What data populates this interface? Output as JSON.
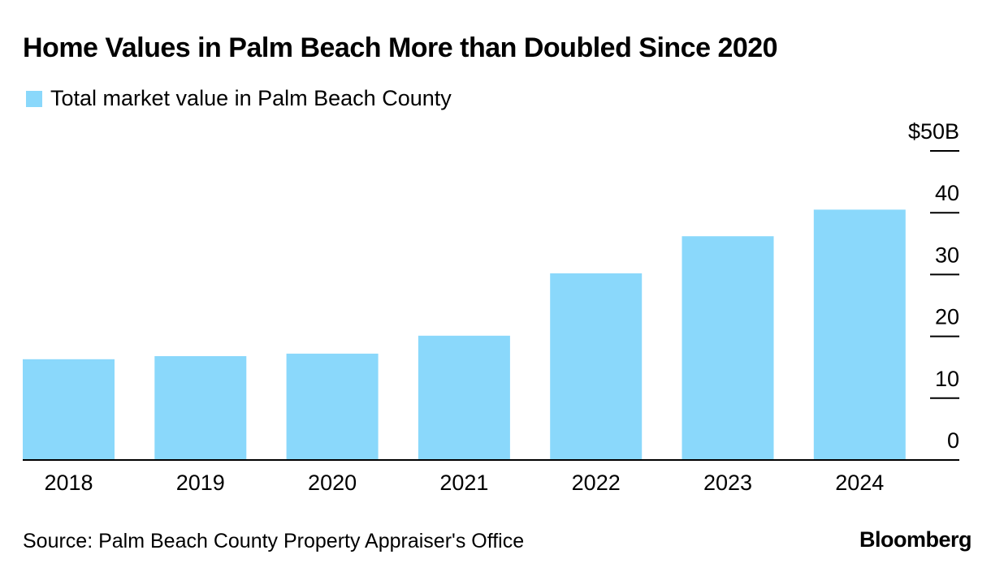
{
  "header": {
    "title": "Home Values in Palm Beach More than Doubled Since 2020"
  },
  "legend": {
    "label": "Total market value in Palm Beach County",
    "color": "#8AD8FB"
  },
  "footer": {
    "source": "Source: Palm Beach County Property Appraiser's Office",
    "logo_text": "Bloomberg"
  },
  "chart_data": {
    "type": "bar",
    "title": "Home Values in Palm Beach More than Doubled Since 2020",
    "xlabel": "",
    "ylabel": "",
    "categories": [
      "2018",
      "2019",
      "2020",
      "2021",
      "2022",
      "2023",
      "2024"
    ],
    "series": [
      {
        "name": "Total market value in Palm Beach County",
        "values": [
          16.3,
          16.8,
          17.2,
          20.1,
          30.2,
          36.2,
          40.5
        ],
        "color": "#8AD8FB"
      }
    ],
    "ylim": [
      0,
      50
    ],
    "yticks": [
      0,
      10,
      20,
      30,
      40,
      50
    ],
    "ytick_labels": [
      "0",
      "10",
      "20",
      "30",
      "40",
      "$50B"
    ],
    "y_axis_position": "right",
    "grid": false,
    "legend_position": "top-left"
  }
}
